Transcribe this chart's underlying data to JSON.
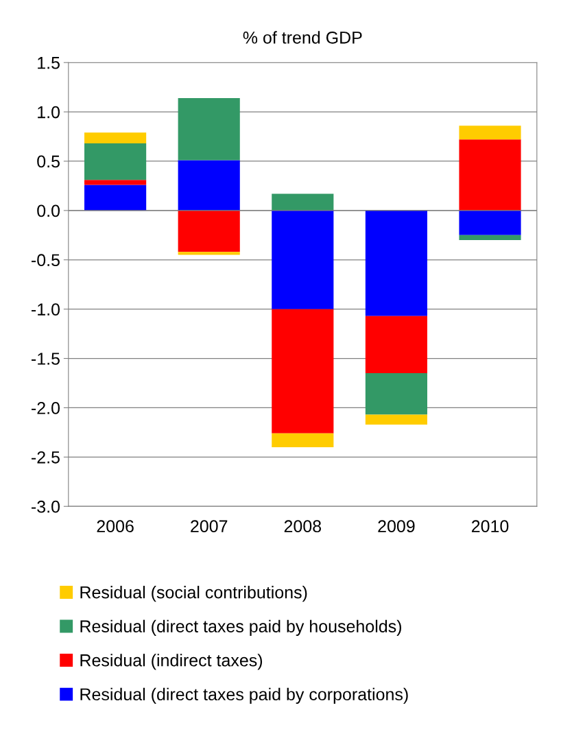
{
  "chart_data": {
    "type": "bar",
    "title": "% of trend GDP",
    "stacked": true,
    "categories": [
      "2006",
      "2007",
      "2008",
      "2009",
      "2010"
    ],
    "series": [
      {
        "name": "Residual (direct taxes paid by corporations)",
        "color": "#0000ff",
        "values": [
          0.26,
          0.51,
          -1.0,
          -1.07,
          -0.25
        ]
      },
      {
        "name": "Residual (indirect taxes)",
        "color": "#ff0000",
        "values": [
          0.05,
          -0.42,
          -1.26,
          -0.58,
          0.72
        ]
      },
      {
        "name": "Residual (direct taxes paid by households)",
        "color": "#339966",
        "values": [
          0.37,
          0.63,
          0.17,
          -0.42,
          -0.05
        ]
      },
      {
        "name": "Residual (social contributions)",
        "color": "#ffcc00",
        "values": [
          0.11,
          -0.03,
          -0.14,
          -0.1,
          0.14
        ]
      }
    ],
    "ylim": [
      -3.0,
      1.5
    ],
    "yticks": [
      {
        "value": -3,
        "label": "-3.0"
      },
      -2.5,
      {
        "value": -2,
        "label": "-2.0"
      },
      -1.5,
      {
        "value": -1,
        "label": "-1.0"
      },
      -0.5,
      {
        "value": 0,
        "label": "0.0"
      },
      0.5,
      {
        "value": 1,
        "label": "1.0"
      },
      1.5
    ],
    "grid": "y",
    "legend": "bottom"
  }
}
